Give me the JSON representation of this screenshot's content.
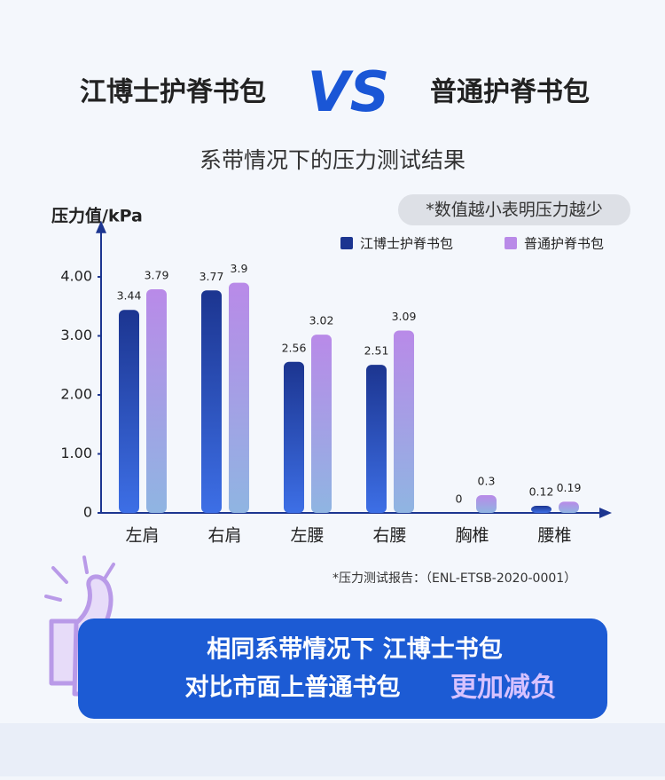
{
  "header": {
    "left": "江博士护脊书包",
    "vs": "VS",
    "right": "普通护脊书包",
    "subtitle": "系带情况下的压力测试结果"
  },
  "chart_data": {
    "type": "bar",
    "ylabel": "压力值/kPa",
    "note": "*数值越小表明压力越少",
    "categories": [
      "左肩",
      "右肩",
      "左腰",
      "右腰",
      "胸椎",
      "腰椎"
    ],
    "series": [
      {
        "name": "江博士护脊书包",
        "color": "#1c3590",
        "values": [
          3.44,
          3.77,
          2.56,
          2.51,
          0,
          0.12
        ]
      },
      {
        "name": "普通护脊书包",
        "color": "#b98ae8",
        "values": [
          3.79,
          3.9,
          3.02,
          3.09,
          0.3,
          0.19
        ]
      }
    ],
    "ylim": [
      0,
      4.5
    ],
    "yticks": [
      {
        "value": 0,
        "label": "0"
      },
      {
        "value": 1,
        "label": "1.00"
      },
      {
        "value": 2,
        "label": "2.00"
      },
      {
        "value": 3,
        "label": "3.00"
      },
      {
        "value": 4,
        "label": "4.00"
      }
    ],
    "footnote": "*压力测试报告：（ENL-ETSB-2020-0001）"
  },
  "banner": {
    "line1": "相同系带情况下 江博士书包",
    "line2": "对比市面上普通书包",
    "highlight": "更加减负"
  }
}
